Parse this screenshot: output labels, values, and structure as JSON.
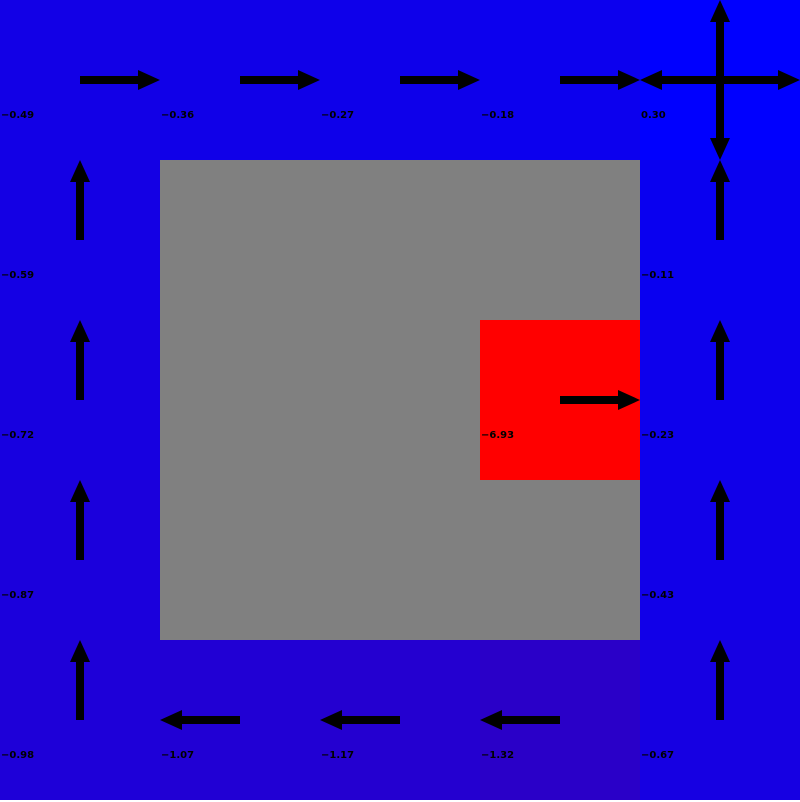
{
  "title": "",
  "colors": {
    "wall": "#808080",
    "hazard": "#ff0000",
    "goal": "#0000ff",
    "arrow": "#000000",
    "text": "#000000"
  },
  "grid": {
    "rows": 5,
    "cols": 5,
    "cells": [
      [
        {
          "type": "state",
          "value": "-0.49",
          "policy": [
            "right"
          ],
          "color": "#1200e6"
        },
        {
          "type": "state",
          "value": "-0.36",
          "policy": [
            "right"
          ],
          "color": "#1000e8"
        },
        {
          "type": "state",
          "value": "-0.27",
          "policy": [
            "right"
          ],
          "color": "#0e00ea"
        },
        {
          "type": "state",
          "value": "-0.18",
          "policy": [
            "right"
          ],
          "color": "#0c00ee"
        },
        {
          "type": "goal",
          "value": "0.30",
          "policy": [
            "up",
            "down",
            "left",
            "right"
          ],
          "color": "#0000ff"
        }
      ],
      [
        {
          "type": "state",
          "value": "-0.59",
          "policy": [
            "up"
          ],
          "color": "#1400e4"
        },
        {
          "type": "wall",
          "value": "",
          "policy": [],
          "color": "#808080"
        },
        {
          "type": "wall",
          "value": "",
          "policy": [],
          "color": "#808080"
        },
        {
          "type": "wall",
          "value": "",
          "policy": [],
          "color": "#808080"
        },
        {
          "type": "state",
          "value": "-0.11",
          "policy": [
            "up"
          ],
          "color": "#0900f0"
        }
      ],
      [
        {
          "type": "state",
          "value": "-0.72",
          "policy": [
            "up"
          ],
          "color": "#1700e0"
        },
        {
          "type": "wall",
          "value": "",
          "policy": [],
          "color": "#808080"
        },
        {
          "type": "wall",
          "value": "",
          "policy": [],
          "color": "#808080"
        },
        {
          "type": "hazard",
          "value": "-6.93",
          "policy": [
            "right"
          ],
          "color": "#ff0000"
        },
        {
          "type": "state",
          "value": "-0.23",
          "policy": [
            "up"
          ],
          "color": "#0d00ec"
        }
      ],
      [
        {
          "type": "state",
          "value": "-0.87",
          "policy": [
            "up"
          ],
          "color": "#1b00dc"
        },
        {
          "type": "wall",
          "value": "",
          "policy": [],
          "color": "#808080"
        },
        {
          "type": "wall",
          "value": "",
          "policy": [],
          "color": "#808080"
        },
        {
          "type": "wall",
          "value": "",
          "policy": [],
          "color": "#808080"
        },
        {
          "type": "state",
          "value": "-0.43",
          "policy": [
            "up"
          ],
          "color": "#1100e8"
        }
      ],
      [
        {
          "type": "state",
          "value": "-0.98",
          "policy": [
            "up"
          ],
          "color": "#1e00d8"
        },
        {
          "type": "state",
          "value": "-1.07",
          "policy": [
            "left"
          ],
          "color": "#2100d4"
        },
        {
          "type": "state",
          "value": "-1.17",
          "policy": [
            "left"
          ],
          "color": "#2400d0"
        },
        {
          "type": "state",
          "value": "-1.32",
          "policy": [
            "left"
          ],
          "color": "#2a00c8"
        },
        {
          "type": "state",
          "value": "-0.67",
          "policy": [
            "up"
          ],
          "color": "#1600e2"
        }
      ]
    ]
  }
}
